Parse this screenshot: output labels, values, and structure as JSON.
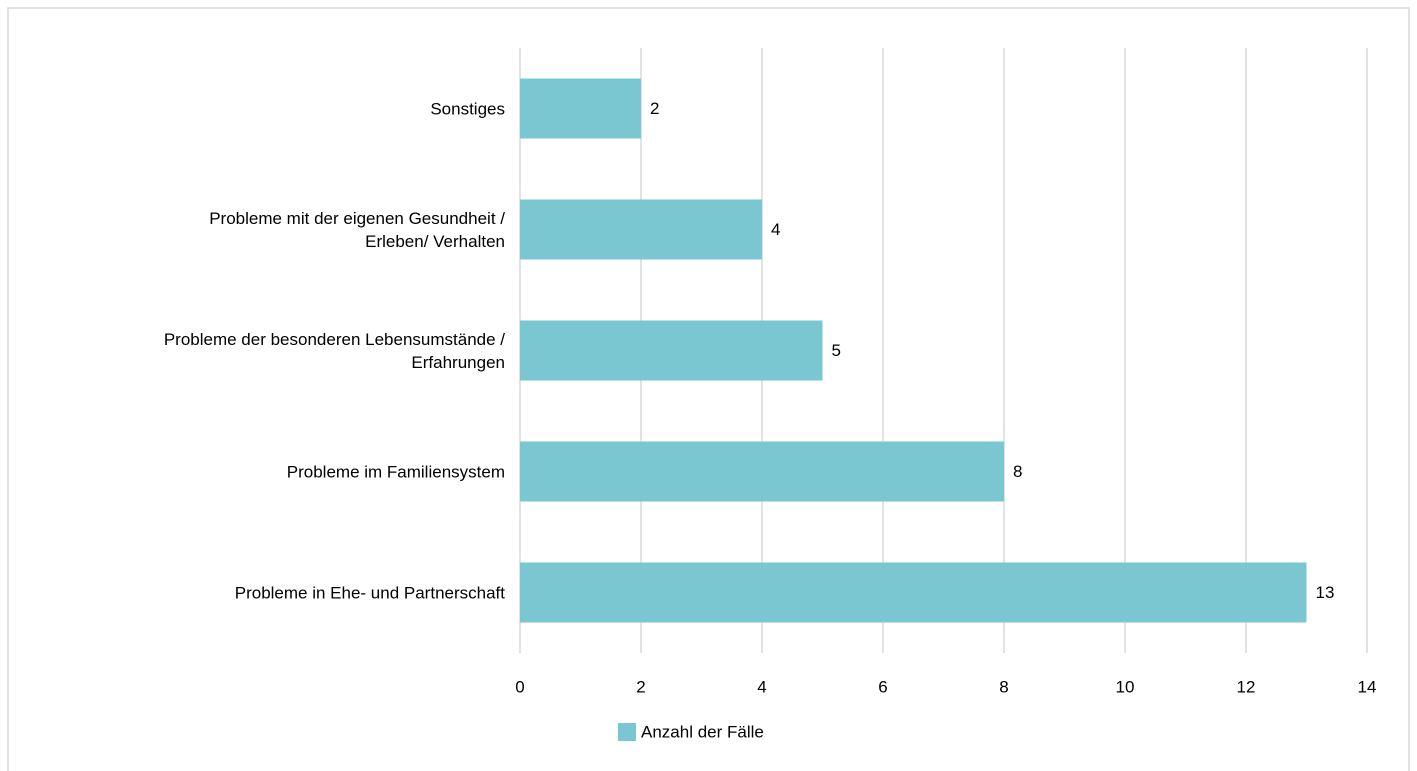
{
  "chart_data": {
    "type": "barh",
    "categories": [
      "Sonstiges",
      "Probleme mit der eigenen Gesundheit /\nErleben/ Verhalten",
      "Probleme der besonderen Lebensumstände /\nErfahrungen",
      "Probleme im Familiensystem",
      "Probleme in Ehe- und Partnerschaft"
    ],
    "series": [
      {
        "name": "Anzahl der Fälle",
        "color": "#7ac7d2",
        "values": [
          2,
          4,
          5,
          8,
          13
        ]
      }
    ],
    "xlim": [
      0,
      14
    ],
    "xticks": [
      0,
      2,
      4,
      6,
      8,
      10,
      12,
      14
    ],
    "grid": true,
    "legend": "bottom"
  }
}
